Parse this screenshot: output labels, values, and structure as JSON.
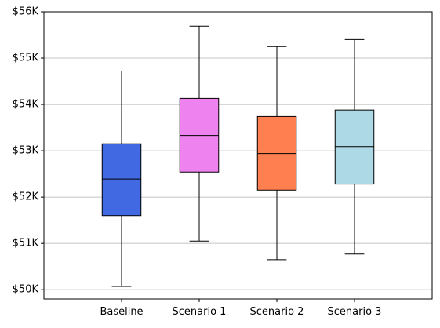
{
  "chart_data": {
    "type": "boxplot",
    "title": "",
    "xlabel": "",
    "ylabel": "",
    "grid": {
      "y": true,
      "x": false
    },
    "ylim": [
      49800,
      56000
    ],
    "yticks": [
      {
        "value": 50000,
        "label": "$50K"
      },
      {
        "value": 51000,
        "label": "$51K"
      },
      {
        "value": 52000,
        "label": "$52K"
      },
      {
        "value": 53000,
        "label": "$53K"
      },
      {
        "value": 54000,
        "label": "$54K"
      },
      {
        "value": 55000,
        "label": "$55K"
      },
      {
        "value": 56000,
        "label": "$56K"
      }
    ],
    "categories": [
      "Baseline",
      "Scenario 1",
      "Scenario 2",
      "Scenario 3"
    ],
    "series": [
      {
        "category": "Baseline",
        "color": "#4169E1",
        "whisker_low": 50070,
        "q1": 51600,
        "median": 52390,
        "q3": 53150,
        "whisker_high": 54720
      },
      {
        "category": "Scenario 1",
        "color": "#EE82EE",
        "whisker_low": 51050,
        "q1": 52540,
        "median": 53330,
        "q3": 54130,
        "whisker_high": 55690
      },
      {
        "category": "Scenario 2",
        "color": "#FF7F50",
        "whisker_low": 50650,
        "q1": 52150,
        "median": 52940,
        "q3": 53740,
        "whisker_high": 55250
      },
      {
        "category": "Scenario 3",
        "color": "#ADD8E6",
        "whisker_low": 50770,
        "q1": 52280,
        "median": 53090,
        "q3": 53880,
        "whisker_high": 55400
      }
    ]
  }
}
